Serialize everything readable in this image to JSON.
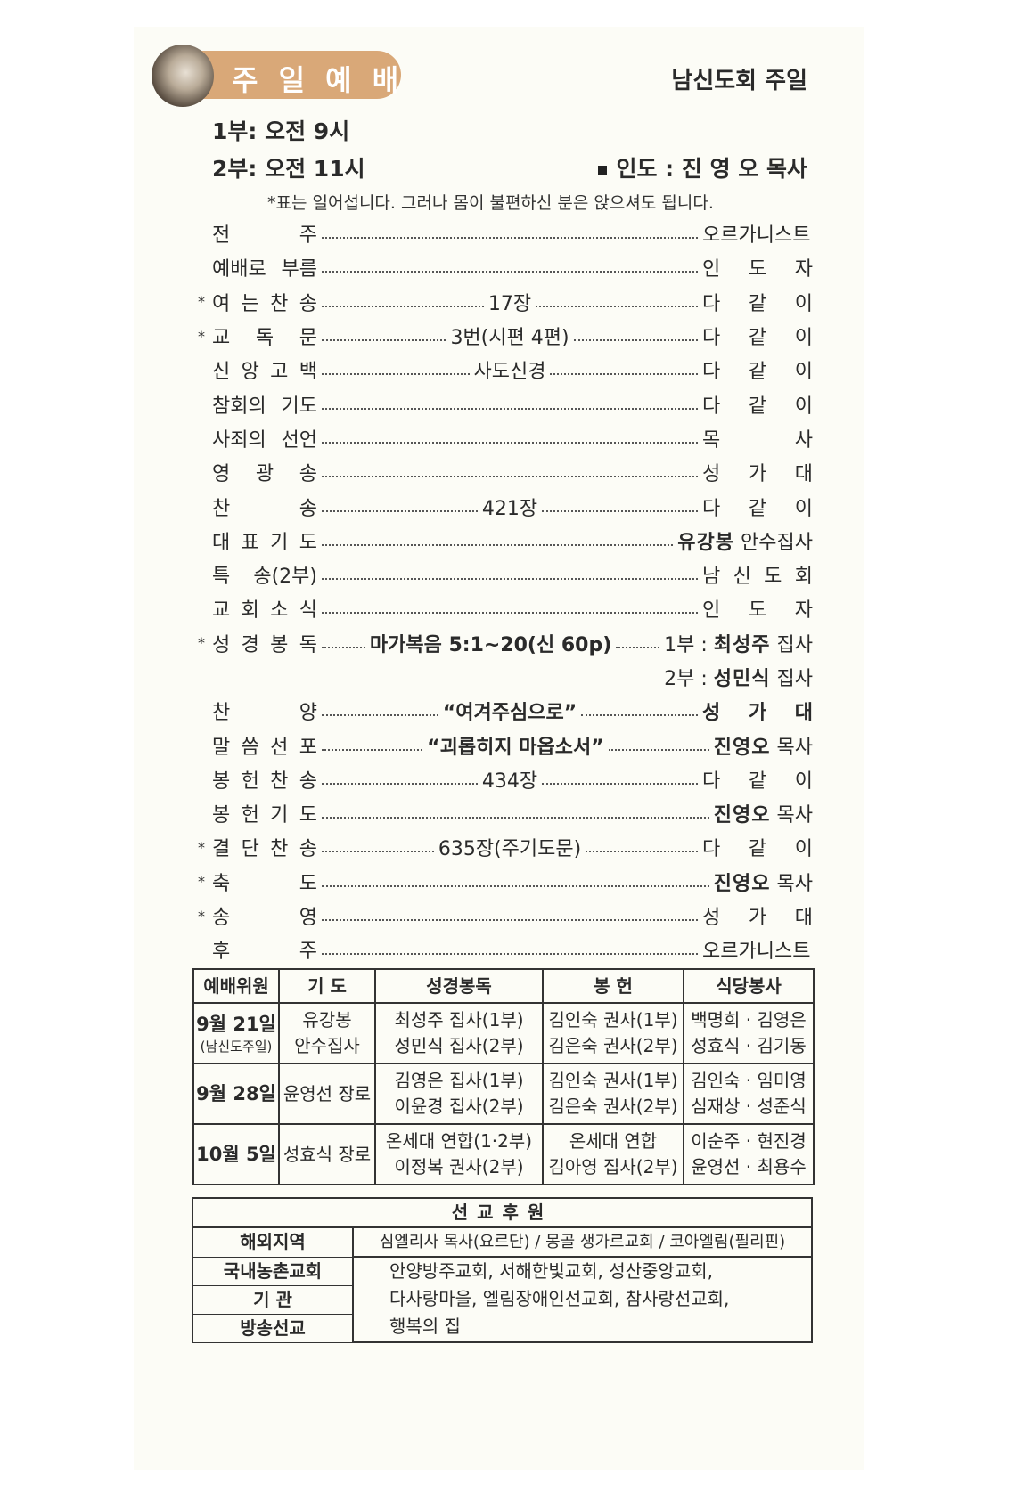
{
  "header": {
    "title": "주 일 예 배",
    "subtitle": "남신도회 주일",
    "icon": "praying-hands-photo",
    "accent_color": "#d9a878"
  },
  "times": [
    "1부: 오전  9시",
    "2부: 오전 11시"
  ],
  "leader": "인도 : 진 영 오 목사",
  "note": "*표는 일어섭니다. 그러나 몸이 불편하신 분은 앉으셔도 됩니다.",
  "order": [
    {
      "star": false,
      "label": "전 주",
      "center": "",
      "right": "오르가니스트"
    },
    {
      "star": false,
      "label": "예배로 부름",
      "center": "",
      "right": "인 도 자"
    },
    {
      "star": true,
      "label": "여 는 찬 송",
      "center": "17장",
      "right": "다 같 이"
    },
    {
      "star": true,
      "label": "교 독 문",
      "center": "3번(시편 4편)",
      "right": "다 같 이"
    },
    {
      "star": false,
      "label": "신 앙 고 백",
      "center": "사도신경",
      "right": "다 같 이"
    },
    {
      "star": false,
      "label": "참회의 기도",
      "center": "",
      "right": "다 같 이"
    },
    {
      "star": false,
      "label": "사죄의 선언",
      "center": "",
      "right": "목 사"
    },
    {
      "star": false,
      "label": "영 광 송",
      "center": "",
      "right": "성 가 대"
    },
    {
      "star": false,
      "label": "찬 송",
      "center": "421장",
      "right": "다 같 이"
    },
    {
      "star": false,
      "label": "대 표 기 도",
      "center": "",
      "right_prefix": "",
      "right_name": "유강봉",
      "right_title": " 안수집사"
    },
    {
      "star": false,
      "label": "특 송(2부)",
      "center": "",
      "right": "남 신 도 회"
    },
    {
      "star": false,
      "label": "교 회 소 식",
      "center": "",
      "right": "인 도 자"
    },
    {
      "star": true,
      "label": "성 경 봉 독",
      "center": "마가복음 5:1~20(신 60p)",
      "center_bold": true,
      "right_prefix": "1부 : ",
      "right_name": "최성주",
      "right_title": " 집사"
    },
    {
      "continuation": true,
      "right_prefix": "2부 : ",
      "right_name": "성민식",
      "right_title": " 집사"
    },
    {
      "star": false,
      "label": "찬 양",
      "center": "“여겨주심으로”",
      "center_bold": true,
      "right": "성 가 대",
      "right_bold": true
    },
    {
      "star": false,
      "label": "말 씀 선 포",
      "center": "“괴롭히지 마옵소서”",
      "center_bold": true,
      "right_prefix": "",
      "right_name": "진영오",
      "right_title": " 목사"
    },
    {
      "star": false,
      "label": "봉 헌 찬 송",
      "center": "434장",
      "right": "다 같 이"
    },
    {
      "star": false,
      "label": "봉 헌 기 도",
      "center": "",
      "right_prefix": "",
      "right_name": "진영오",
      "right_title": " 목사"
    },
    {
      "star": true,
      "label": "결 단 찬 송",
      "center": "635장(주기도문)",
      "right": "다 같 이"
    },
    {
      "star": true,
      "label": "축 도",
      "center": "",
      "right_prefix": "",
      "right_name": "진영오",
      "right_title": " 목사"
    },
    {
      "star": true,
      "label": "송 영",
      "center": "",
      "right": "성 가 대"
    },
    {
      "star": false,
      "label": "후 주",
      "center": "",
      "right": "오르가니스트"
    }
  ],
  "schedule": {
    "headers": [
      "예배위원",
      "기  도",
      "성경봉독",
      "봉  헌",
      "식당봉사"
    ],
    "rows": [
      {
        "date": "9월 21일",
        "date_note": "(남신도주일)",
        "prayer": "유강봉\n안수집사",
        "reading": [
          "최성주 집사(1부)",
          "성민식 집사(2부)"
        ],
        "offering": [
          "김인숙 권사(1부)",
          "김은숙 권사(2부)"
        ],
        "kitchen": [
          "백명희 · 김영은",
          "성효식 · 김기동"
        ]
      },
      {
        "date": "9월 28일",
        "date_note": "",
        "prayer": "윤영선 장로",
        "reading": [
          "김영은 집사(1부)",
          "이윤경 집사(2부)"
        ],
        "offering": [
          "김인숙 권사(1부)",
          "김은숙 권사(2부)"
        ],
        "kitchen": [
          "김인숙 · 임미영",
          "심재상 · 성준식"
        ]
      },
      {
        "date": "10월 5일",
        "date_note": "",
        "prayer": "성효식 장로",
        "reading": [
          "온세대 연합(1·2부)",
          "이정복 권사(2부)"
        ],
        "offering": [
          "온세대 연합",
          "김아영 집사(2부)"
        ],
        "kitchen": [
          "이순주 · 현진경",
          "윤영선 · 최용수"
        ]
      }
    ]
  },
  "mission": {
    "title": "선교후원",
    "overseas_label": "해외지역",
    "overseas": "심엘리사 목사(요르단) / 몽골 생가르교회 / 코아엘림(필리핀)",
    "labels": [
      "국내농촌교회",
      "기  관",
      "방송선교"
    ],
    "domestic": [
      "안양방주교회, 서해한빛교회, 성산중앙교회,",
      "다사랑마을, 엘림장애인선교회, 참사랑선교회,",
      "행복의 집"
    ]
  }
}
